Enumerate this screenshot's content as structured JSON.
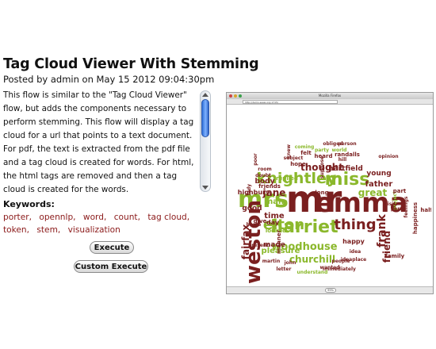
{
  "page": {
    "title": "Tag Cloud Viewer With Stemming",
    "posted": "Posted by admin on May 15 2012 09:04:30pm",
    "description": "This flow is similar to the \"Tag Cloud Viewer\" flow, but adds the components necessary to perform stemming. This flow will display a tag cloud for a url that points to a text document. For pdf, the text is extracted from the pdf file and a tag cloud is created for words. For html, the html tags are removed and then a tag cloud is created for the words.",
    "keywords_label": "Keywords:",
    "keywords": [
      "porter,",
      "opennlp,",
      "word,",
      "count,",
      "tag cloud,",
      "token,",
      "stem,",
      "visualization"
    ],
    "buttons": {
      "execute": "Execute",
      "custom_execute": "Custom Execute"
    }
  },
  "screenshot": {
    "window_title": "Mozilla Firefox",
    "url": "http://demo.seasr.org:1715/",
    "zoom": "99%",
    "cloud_words": [
      {
        "text": "mr",
        "color": "#7a1f1f",
        "rotate": 0
      },
      {
        "text": "emma",
        "color": "#7a1f1f",
        "rotate": 0
      },
      {
        "text": "mrs",
        "color": "#8bb82c",
        "rotate": 0
      },
      {
        "text": "miss",
        "color": "#8bb82c",
        "rotate": 0
      },
      {
        "text": "harriet",
        "color": "#8bb82c",
        "rotate": 0
      },
      {
        "text": "weston",
        "color": "#7a1f1f",
        "rotate": -90
      },
      {
        "text": "knightley",
        "color": "#8bb82c",
        "rotate": 0
      },
      {
        "text": "elton",
        "color": "#8bb82c",
        "rotate": 0
      },
      {
        "text": "thing",
        "color": "#7a1f1f",
        "rotate": 0
      },
      {
        "text": "frank",
        "color": "#7a1f1f",
        "rotate": -90
      },
      {
        "text": "fairfax",
        "color": "#7a1f1f",
        "rotate": -90
      },
      {
        "text": "thought",
        "color": "#7a1f1f",
        "rotate": 0
      },
      {
        "text": "woodhouse",
        "color": "#8bb82c",
        "rotate": 0
      },
      {
        "text": "churchill",
        "color": "#8bb82c",
        "rotate": 0
      },
      {
        "text": "jane",
        "color": "#7a1f1f",
        "rotate": 0
      },
      {
        "text": "great",
        "color": "#8bb82c",
        "rotate": 0
      },
      {
        "text": "friend",
        "color": "#7a1f1f",
        "rotate": -90
      },
      {
        "text": "father",
        "color": "#7a1f1f",
        "rotate": 0
      },
      {
        "text": "time",
        "color": "#7a1f1f",
        "rotate": 0
      },
      {
        "text": "hartfield",
        "color": "#7a1f1f",
        "rotate": 0
      },
      {
        "text": "young",
        "color": "#7a1f1f",
        "rotate": 0
      },
      {
        "text": "body",
        "color": "#7a1f1f",
        "rotate": 0
      },
      {
        "text": "made",
        "color": "#7a1f1f",
        "rotate": 0
      },
      {
        "text": "man",
        "color": "#8bb82c",
        "rotate": 0
      },
      {
        "text": "good",
        "color": "#7a1f1f",
        "rotate": 0
      },
      {
        "text": "day",
        "color": "#7a1f1f",
        "rotate": 0
      },
      {
        "text": "pleasure",
        "color": "#8bb82c",
        "rotate": 0
      },
      {
        "text": "happy",
        "color": "#7a1f1f",
        "rotate": 0
      },
      {
        "text": "family",
        "color": "#7a1f1f",
        "rotate": 0
      },
      {
        "text": "highbury",
        "color": "#7a1f1f",
        "rotate": 0
      },
      {
        "text": "randalls",
        "color": "#7a1f1f",
        "rotate": 0
      },
      {
        "text": "obliged",
        "color": "#7a1f1f",
        "rotate": 0
      },
      {
        "text": "party",
        "color": "#8bb82c",
        "rotate": 0
      },
      {
        "text": "world",
        "color": "#8bb82c",
        "rotate": 0
      },
      {
        "text": "person",
        "color": "#7a1f1f",
        "rotate": 0
      },
      {
        "text": "coming",
        "color": "#8bb82c",
        "rotate": 0
      },
      {
        "text": "felt",
        "color": "#7a1f1f",
        "rotate": 0
      },
      {
        "text": "hope",
        "color": "#7a1f1f",
        "rotate": 0
      },
      {
        "text": "heard",
        "color": "#7a1f1f",
        "rotate": 0
      },
      {
        "text": "hill",
        "color": "#7a1f1f",
        "rotate": 0
      },
      {
        "text": "half",
        "color": "#7a1f1f",
        "rotate": 0
      },
      {
        "text": "happiness",
        "color": "#7a1f1f",
        "rotate": -90
      },
      {
        "text": "feelings",
        "color": "#7a1f1f",
        "rotate": -90
      },
      {
        "text": "project",
        "color": "#8bb82c",
        "rotate": -90
      },
      {
        "text": "visit",
        "color": "#7a1f1f",
        "rotate": 0
      },
      {
        "text": "perry",
        "color": "#7a1f1f",
        "rotate": 0
      },
      {
        "text": "opinion",
        "color": "#7a1f1f",
        "rotate": 0
      },
      {
        "text": "idea",
        "color": "#7a1f1f",
        "rotate": 0
      },
      {
        "text": "ideaplace",
        "color": "#7a1f1f",
        "rotate": 0
      },
      {
        "text": "immediately",
        "color": "#7a1f1f",
        "rotate": 0
      },
      {
        "text": "understand",
        "color": "#8bb82c",
        "rotate": 0
      },
      {
        "text": "wanted",
        "color": "#7a1f1f",
        "rotate": 0
      },
      {
        "text": "people",
        "color": "#7a1f1f",
        "rotate": 0
      },
      {
        "text": "martin",
        "color": "#7a1f1f",
        "rotate": 0
      },
      {
        "text": "john",
        "color": "#7a1f1f",
        "rotate": 0
      },
      {
        "text": "letter",
        "color": "#7a1f1f",
        "rotate": 0
      },
      {
        "text": "present",
        "color": "#7a1f1f",
        "rotate": 0
      },
      {
        "text": "friends",
        "color": "#7a1f1f",
        "rotate": 0
      },
      {
        "text": "doubt",
        "color": "#7a1f1f",
        "rotate": 0
      },
      {
        "text": "room",
        "color": "#7a1f1f",
        "rotate": 0
      },
      {
        "text": "subject",
        "color": "#7a1f1f",
        "rotate": 0
      },
      {
        "text": "replied",
        "color": "#8bb82c",
        "rotate": 0
      },
      {
        "text": "looked",
        "color": "#8bb82c",
        "rotate": 0
      },
      {
        "text": "give",
        "color": "#7a1f1f",
        "rotate": 0
      },
      {
        "text": "home",
        "color": "#7a1f1f",
        "rotate": 0
      },
      {
        "text": "lady",
        "color": "#7a1f1f",
        "rotate": -90
      },
      {
        "text": "suppose",
        "color": "#7a1f1f",
        "rotate": -90
      },
      {
        "text": "knew",
        "color": "#7a1f1f",
        "rotate": -90
      },
      {
        "text": "poor",
        "color": "#7a1f1f",
        "rotate": -90
      },
      {
        "text": "part",
        "color": "#7a1f1f",
        "rotate": 0
      },
      {
        "text": "long",
        "color": "#7a1f1f",
        "rotate": 0
      },
      {
        "text": "manner",
        "color": "#7a1f1f",
        "rotate": -90
      },
      {
        "text": "till",
        "color": "#7a1f1f",
        "rotate": 0
      },
      {
        "text": "dear",
        "color": "#7a1f1f",
        "rotate": 0
      }
    ]
  }
}
